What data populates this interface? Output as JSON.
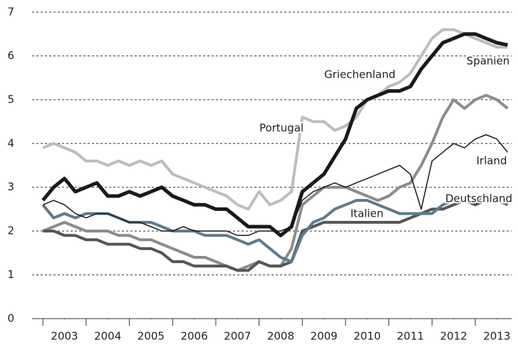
{
  "chart_data": {
    "type": "line",
    "x": [
      2003,
      2003.25,
      2003.5,
      2003.75,
      2004,
      2004.25,
      2004.5,
      2004.75,
      2005,
      2005.25,
      2005.5,
      2005.75,
      2006,
      2006.25,
      2006.5,
      2006.75,
      2007,
      2007.25,
      2007.5,
      2007.75,
      2008,
      2008.25,
      2008.5,
      2008.75,
      2009,
      2009.25,
      2009.5,
      2009.75,
      2010,
      2010.25,
      2010.5,
      2010.75,
      2011,
      2011.25,
      2011.5,
      2011.75,
      2012,
      2012.25,
      2012.5,
      2012.75,
      2013,
      2013.25,
      2013.5,
      2013.75
    ],
    "xlim": [
      2002.75,
      2013.84
    ],
    "xticks": [
      {
        "value": 2003.5,
        "label": "2003"
      },
      {
        "value": 2004.5,
        "label": "2004"
      },
      {
        "value": 2005.5,
        "label": "2005"
      },
      {
        "value": 2006.5,
        "label": "2006"
      },
      {
        "value": 2007.5,
        "label": "2007"
      },
      {
        "value": 2008.5,
        "label": "2008"
      },
      {
        "value": 2009.5,
        "label": "2009"
      },
      {
        "value": 2010.5,
        "label": "2010"
      },
      {
        "value": 2011.5,
        "label": "2011"
      },
      {
        "value": 2012.5,
        "label": "2012"
      },
      {
        "value": 2013.5,
        "label": "2013"
      }
    ],
    "ylim": [
      0,
      7
    ],
    "yticks": [
      0,
      1,
      2,
      3,
      4,
      5,
      6,
      7
    ],
    "grid": true,
    "series": [
      {
        "name": "Portugal",
        "color": "#bdbdbd",
        "values": [
          3.9,
          4.0,
          3.9,
          3.8,
          3.6,
          3.6,
          3.5,
          3.6,
          3.5,
          3.6,
          3.5,
          3.6,
          3.3,
          3.2,
          3.1,
          3.0,
          2.9,
          2.8,
          2.6,
          2.5,
          2.9,
          2.6,
          2.7,
          2.9,
          4.6,
          4.5,
          4.5,
          4.3,
          4.4,
          4.6,
          5.0,
          5.1,
          5.3,
          5.4,
          5.6,
          6.0,
          6.4,
          6.6,
          6.6,
          6.5,
          6.4,
          6.3,
          6.2,
          6.2
        ]
      },
      {
        "name": "Spanien",
        "color": "#8c8c8c",
        "values": [
          2.0,
          2.1,
          2.2,
          2.1,
          2.0,
          2.0,
          2.0,
          1.9,
          1.9,
          1.8,
          1.8,
          1.7,
          1.6,
          1.5,
          1.4,
          1.4,
          1.3,
          1.2,
          1.1,
          1.2,
          1.3,
          1.2,
          1.2,
          1.6,
          2.6,
          2.8,
          3.0,
          3.0,
          3.0,
          2.9,
          2.8,
          2.7,
          2.8,
          3.0,
          3.1,
          3.5,
          4.0,
          4.6,
          5.0,
          4.8,
          5.0,
          5.1,
          5.0,
          4.8
        ]
      },
      {
        "name": "Italien",
        "color": "#555555",
        "values": [
          2.0,
          2.0,
          1.9,
          1.9,
          1.8,
          1.8,
          1.7,
          1.7,
          1.7,
          1.6,
          1.6,
          1.5,
          1.3,
          1.3,
          1.2,
          1.2,
          1.2,
          1.2,
          1.1,
          1.1,
          1.3,
          1.2,
          1.2,
          1.3,
          2.0,
          2.1,
          2.2,
          2.2,
          2.2,
          2.2,
          2.2,
          2.2,
          2.2,
          2.2,
          2.3,
          2.4,
          2.5,
          2.5,
          2.6,
          2.7,
          2.6,
          2.7,
          2.7,
          2.6
        ]
      },
      {
        "name": "Deutschland",
        "color": "#5e7b8c",
        "values": [
          2.6,
          2.3,
          2.4,
          2.3,
          2.4,
          2.4,
          2.4,
          2.3,
          2.2,
          2.2,
          2.2,
          2.1,
          2.0,
          2.0,
          2.0,
          1.9,
          1.9,
          1.9,
          1.8,
          1.7,
          1.8,
          1.6,
          1.4,
          1.3,
          1.9,
          2.2,
          2.3,
          2.5,
          2.6,
          2.7,
          2.7,
          2.6,
          2.5,
          2.4,
          2.4,
          2.4,
          2.4,
          2.6,
          2.7,
          2.7,
          2.7,
          2.8,
          2.7,
          2.6
        ]
      },
      {
        "name": "Irland",
        "color": "#1a1a1a",
        "values": [
          2.6,
          2.7,
          2.6,
          2.4,
          2.3,
          2.4,
          2.4,
          2.3,
          2.2,
          2.2,
          2.1,
          2.0,
          2.0,
          2.1,
          2.0,
          2.0,
          2.0,
          2.0,
          1.9,
          1.9,
          2.0,
          2.0,
          2.0,
          2.1,
          2.7,
          2.9,
          3.0,
          3.1,
          3.0,
          3.1,
          3.2,
          3.3,
          3.4,
          3.5,
          3.3,
          2.5,
          3.6,
          3.8,
          4.0,
          3.9,
          4.1,
          4.2,
          4.1,
          3.8
        ]
      },
      {
        "name": "Griechenland",
        "color": "#1a1a1a",
        "values": [
          2.7,
          3.0,
          3.2,
          2.9,
          3.0,
          3.1,
          2.8,
          2.8,
          2.9,
          2.8,
          2.9,
          3.0,
          2.8,
          2.7,
          2.6,
          2.6,
          2.5,
          2.5,
          2.3,
          2.1,
          2.1,
          2.1,
          1.9,
          2.1,
          2.9,
          3.1,
          3.3,
          3.7,
          4.1,
          4.8,
          5.0,
          5.1,
          5.2,
          5.2,
          5.3,
          5.7,
          6.0,
          6.3,
          6.4,
          6.5,
          6.5,
          6.4,
          6.3,
          6.25
        ]
      }
    ]
  }
}
